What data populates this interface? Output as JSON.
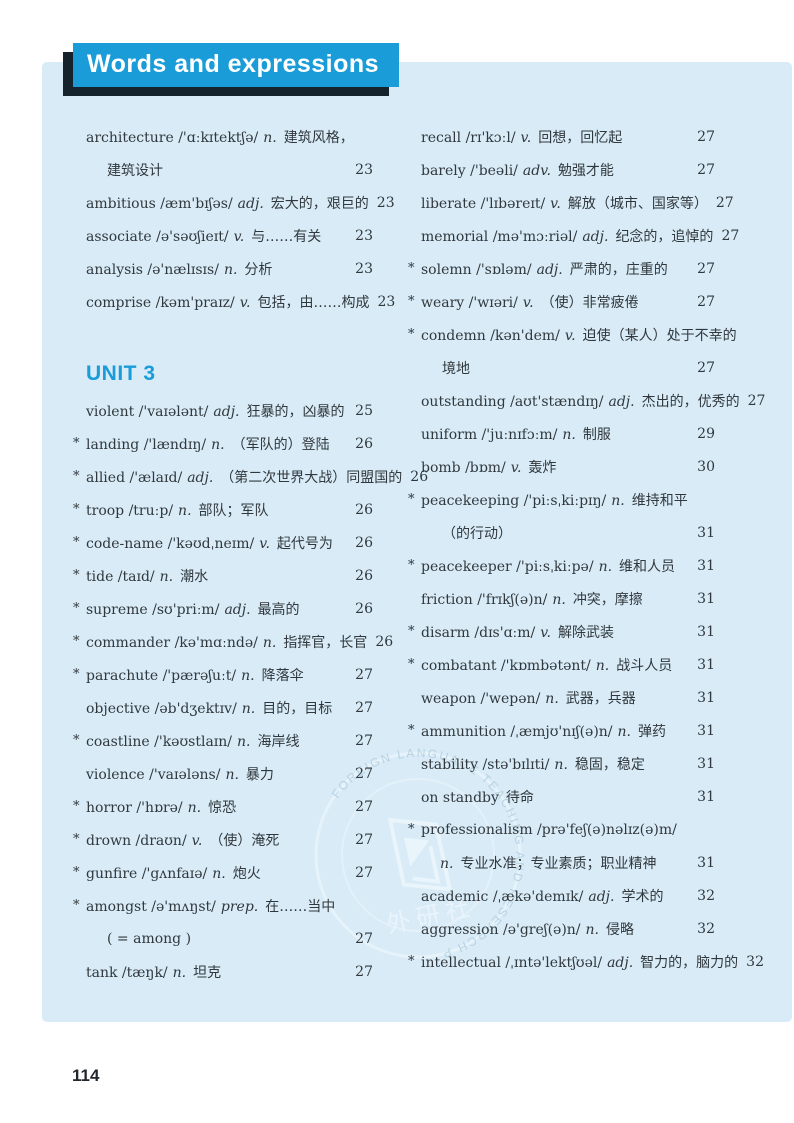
{
  "page": {
    "title": "Words and expressions",
    "page_number": "114",
    "colors": {
      "panel_bg": "#d8ebf7",
      "accent_blue": "#199cd8",
      "header_shadow": "#16222c",
      "text": "#31383d"
    }
  },
  "watermark": {
    "arc_text": "FOREIGN LANGUAGE TEACHING AND RESEARCH PRESS",
    "cjk_text": "外研社",
    "logo": "fltrp-logo"
  },
  "left_column": {
    "intro_rows": [
      {
        "star": false,
        "indent": false,
        "head": "architecture /'ɑːkɪtektʃə/",
        "pos": "n.",
        "def": "建筑风格，",
        "page": ""
      },
      {
        "star": false,
        "indent": true,
        "head": "",
        "pos": "",
        "def": "建筑设计",
        "page": "23"
      },
      {
        "star": false,
        "indent": false,
        "head": "ambitious /æm'bɪʃəs/",
        "pos": "adj.",
        "def": "宏大的，艰巨的",
        "page": "23"
      },
      {
        "star": false,
        "indent": false,
        "head": "associate /ə'səʊʃieɪt/",
        "pos": "v.",
        "def": "与……有关",
        "page": "23"
      },
      {
        "star": false,
        "indent": false,
        "head": "analysis /ə'nælɪsɪs/",
        "pos": "n.",
        "def": "分析",
        "page": "23"
      },
      {
        "star": false,
        "indent": false,
        "head": "comprise /kəm'praɪz/",
        "pos": "v.",
        "def": "包括，由……构成",
        "page": "23"
      }
    ],
    "unit_heading": "UNIT 3",
    "unit_rows": [
      {
        "star": false,
        "indent": false,
        "head": "violent /'vaɪələnt/",
        "pos": "adj.",
        "def": "狂暴的，凶暴的",
        "page": "25"
      },
      {
        "star": true,
        "indent": false,
        "head": "landing /'lændɪŋ/",
        "pos": "n.",
        "def": "（军队的）登陆",
        "page": "26"
      },
      {
        "star": true,
        "indent": false,
        "head": "allied /'ælaɪd/",
        "pos": "adj.",
        "def": "（第二次世界大战）同盟国的",
        "page": "26"
      },
      {
        "star": true,
        "indent": false,
        "head": "troop /truːp/",
        "pos": "n.",
        "def": "部队；军队",
        "page": "26"
      },
      {
        "star": true,
        "indent": false,
        "head": "code-name /'kəʊdˌneɪm/",
        "pos": "v.",
        "def": "起代号为",
        "page": "26"
      },
      {
        "star": true,
        "indent": false,
        "head": "tide /taɪd/",
        "pos": "n.",
        "def": "潮水",
        "page": "26"
      },
      {
        "star": true,
        "indent": false,
        "head": "supreme /sʊ'priːm/",
        "pos": "adj.",
        "def": "最高的",
        "page": "26"
      },
      {
        "star": true,
        "indent": false,
        "head": "commander /kə'mɑːndə/",
        "pos": "n.",
        "def": "指挥官，长官",
        "page": "26"
      },
      {
        "star": true,
        "indent": false,
        "head": "parachute /'pærəʃuːt/",
        "pos": "n.",
        "def": "降落伞",
        "page": "27"
      },
      {
        "star": false,
        "indent": false,
        "head": "objective /əb'dʒektɪv/",
        "pos": "n.",
        "def": "目的，目标",
        "page": "27"
      },
      {
        "star": true,
        "indent": false,
        "head": "coastline /'kəʊstlaɪn/",
        "pos": "n.",
        "def": "海岸线",
        "page": "27"
      },
      {
        "star": false,
        "indent": false,
        "head": "violence /'vaɪələns/",
        "pos": "n.",
        "def": "暴力",
        "page": "27"
      },
      {
        "star": true,
        "indent": false,
        "head": "horror /'hɒrə/",
        "pos": "n.",
        "def": "惊恐",
        "page": "27"
      },
      {
        "star": true,
        "indent": false,
        "head": "drown /draʊn/",
        "pos": "v.",
        "def": "（使）淹死",
        "page": "27"
      },
      {
        "star": true,
        "indent": false,
        "head": "gunfire /'gʌnfaɪə/",
        "pos": "n.",
        "def": "炮火",
        "page": "27"
      },
      {
        "star": true,
        "indent": false,
        "head": "amongst /ə'mʌŋst/",
        "pos": "prep.",
        "def": "在……当中",
        "page": ""
      },
      {
        "star": false,
        "indent": true,
        "head": "",
        "pos": "",
        "def": "( = among )",
        "page": "27"
      },
      {
        "star": false,
        "indent": false,
        "head": "tank /tæŋk/",
        "pos": "n.",
        "def": "坦克",
        "page": "27"
      }
    ]
  },
  "right_column": {
    "rows": [
      {
        "star": false,
        "indent": false,
        "head": "recall /rɪ'kɔːl/",
        "pos": "v.",
        "def": "回想，回忆起",
        "page": "27"
      },
      {
        "star": false,
        "indent": false,
        "head": "barely /'beəli/",
        "pos": "adv.",
        "def": "勉强才能",
        "page": "27"
      },
      {
        "star": false,
        "indent": false,
        "head": "liberate /'lɪbəreɪt/",
        "pos": "v.",
        "def": "解放（城市、国家等）",
        "page": "27"
      },
      {
        "star": false,
        "indent": false,
        "head": "memorial /mə'mɔːriəl/",
        "pos": "adj.",
        "def": "纪念的，追悼的",
        "page": "27"
      },
      {
        "star": true,
        "indent": false,
        "head": "solemn /'sɒləm/",
        "pos": "adj.",
        "def": "严肃的，庄重的",
        "page": "27"
      },
      {
        "star": true,
        "indent": false,
        "head": "weary /'wɪəri/",
        "pos": "v.",
        "def": "（使）非常疲倦",
        "page": "27"
      },
      {
        "star": true,
        "indent": false,
        "head": "condemn /kən'dem/",
        "pos": "v.",
        "def": "迫使（某人）处于不幸的",
        "page": ""
      },
      {
        "star": false,
        "indent": true,
        "head": "",
        "pos": "",
        "def": "境地",
        "page": "27"
      },
      {
        "star": false,
        "indent": false,
        "head": "outstanding /aʊt'stændɪŋ/",
        "pos": "adj.",
        "def": "杰出的，优秀的",
        "page": "27"
      },
      {
        "star": false,
        "indent": false,
        "head": "uniform /'juːnɪfɔːm/",
        "pos": "n.",
        "def": "制服",
        "page": "29"
      },
      {
        "star": false,
        "indent": false,
        "head": "bomb /bɒm/",
        "pos": "v.",
        "def": "轰炸",
        "page": "30"
      },
      {
        "star": true,
        "indent": false,
        "head": "peacekeeping /'piːsˌkiːpɪŋ/",
        "pos": "n.",
        "def": "维持和平",
        "page": ""
      },
      {
        "star": false,
        "indent": true,
        "head": "",
        "pos": "",
        "def": "（的行动）",
        "page": "31"
      },
      {
        "star": true,
        "indent": false,
        "head": "peacekeeper /'piːsˌkiːpə/",
        "pos": "n.",
        "def": "维和人员",
        "page": "31"
      },
      {
        "star": false,
        "indent": false,
        "head": "friction /'frɪkʃ(ə)n/",
        "pos": "n.",
        "def": "冲突，摩擦",
        "page": "31"
      },
      {
        "star": true,
        "indent": false,
        "head": "disarm /dɪs'ɑːm/",
        "pos": "v.",
        "def": "解除武装",
        "page": "31"
      },
      {
        "star": true,
        "indent": false,
        "head": "combatant /'kɒmbətənt/",
        "pos": "n.",
        "def": "战斗人员",
        "page": "31"
      },
      {
        "star": false,
        "indent": false,
        "head": "weapon /'wepən/",
        "pos": "n.",
        "def": "武器，兵器",
        "page": "31"
      },
      {
        "star": true,
        "indent": false,
        "head": "ammunition /ˌæmjʊ'nɪʃ(ə)n/",
        "pos": "n.",
        "def": "弹药",
        "page": "31"
      },
      {
        "star": false,
        "indent": false,
        "head": "stability /stə'bɪlɪti/",
        "pos": "n.",
        "def": "稳固，稳定",
        "page": "31"
      },
      {
        "star": false,
        "indent": false,
        "head": "on standby",
        "pos": "",
        "def": "待命",
        "page": "31"
      },
      {
        "star": true,
        "indent": false,
        "head": "professionalism /prə'feʃ(ə)nəlɪz(ə)m/",
        "pos": "",
        "def": "",
        "page": ""
      },
      {
        "star": false,
        "indent": true,
        "head": "",
        "pos": "n.",
        "def": "专业水准；专业素质；职业精神",
        "page": "31"
      },
      {
        "star": false,
        "indent": false,
        "head": "academic /ˌækə'demɪk/",
        "pos": "adj.",
        "def": "学术的",
        "page": "32"
      },
      {
        "star": false,
        "indent": false,
        "head": "aggression /ə'greʃ(ə)n/",
        "pos": "n.",
        "def": "侵略",
        "page": "32"
      },
      {
        "star": true,
        "indent": false,
        "head": "intellectual /ˌɪntə'lektʃʊəl/",
        "pos": "adj.",
        "def": "智力的，脑力的",
        "page": "32"
      }
    ]
  }
}
